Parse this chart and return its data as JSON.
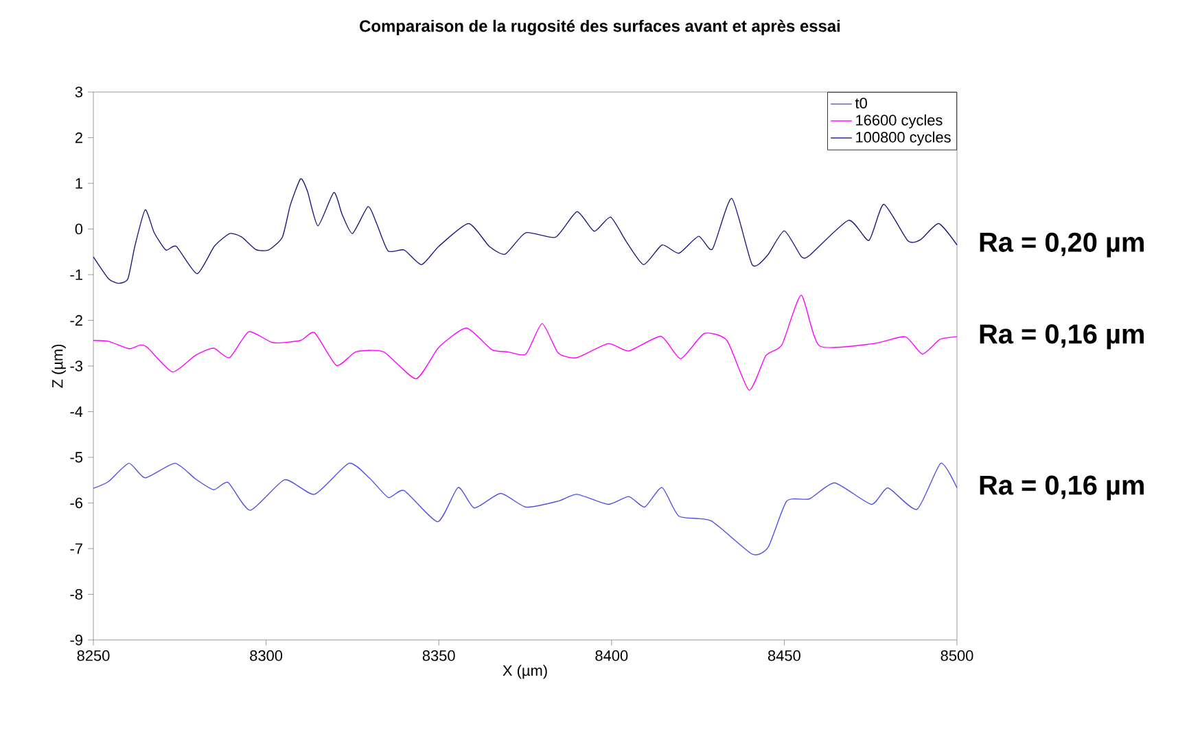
{
  "chart_data": {
    "type": "line",
    "title": "Comparaison de la rugosité des surfaces avant et après essai",
    "xlabel": "X (µm)",
    "ylabel": "Z (µm)",
    "xlim": [
      8250,
      8500
    ],
    "xticks": [
      8250,
      8300,
      8350,
      8400,
      8450,
      8500
    ],
    "ylim": [
      -9,
      3
    ],
    "yticks": [
      -9,
      -8,
      -7,
      -6,
      -5,
      -4,
      -3,
      -2,
      -1,
      0,
      1,
      2,
      3
    ],
    "grid": false,
    "legend": "top right",
    "marker": "none",
    "line_style": "solid",
    "series": [
      {
        "name": "t0",
        "color": "#5050e6",
        "x": [
          8250,
          8254.4,
          8260.3,
          8265,
          8273.6,
          8279.5,
          8284.8,
          8289,
          8295.4,
          8305.4,
          8314,
          8324,
          8330,
          8335.4,
          8340,
          8349.7,
          8355.6,
          8360.3,
          8367.9,
          8375.2,
          8384.5,
          8390,
          8399,
          8405,
          8409.6,
          8414.6,
          8419.5,
          8428.8,
          8440.7,
          8445.4,
          8450.7,
          8457.3,
          8464.6,
          8475.2,
          8480,
          8488.4,
          8495.3,
          8500
        ],
        "values": [
          -5.68,
          -5.53,
          -5.13,
          -5.45,
          -5.13,
          -5.47,
          -5.71,
          -5.55,
          -6.16,
          -5.49,
          -5.81,
          -5.13,
          -5.46,
          -5.88,
          -5.73,
          -6.41,
          -5.66,
          -6.11,
          -5.79,
          -6.09,
          -5.96,
          -5.81,
          -6.03,
          -5.86,
          -6.09,
          -5.66,
          -6.29,
          -6.39,
          -7.12,
          -6.96,
          -5.96,
          -5.91,
          -5.56,
          -6.03,
          -5.67,
          -6.14,
          -5.13,
          -5.67
        ]
      },
      {
        "name": "16600 cycles",
        "color": "#ff00ff",
        "x": [
          8250,
          8254.4,
          8260.3,
          8263.6,
          8265.6,
          8272.9,
          8279.5,
          8284.8,
          8289.4,
          8295,
          8302,
          8310,
          8314,
          8320.4,
          8326,
          8334,
          8343.4,
          8350,
          8358,
          8365.3,
          8370,
          8375.2,
          8379.9,
          8384.5,
          8389.8,
          8399,
          8405,
          8414.3,
          8420,
          8426.8,
          8433.4,
          8439.8,
          8444.7,
          8449.3,
          8454.9,
          8460.2,
          8475.8,
          8485,
          8490,
          8495,
          8500
        ],
        "values": [
          -2.44,
          -2.46,
          -2.62,
          -2.54,
          -2.59,
          -3.13,
          -2.77,
          -2.61,
          -2.82,
          -2.25,
          -2.49,
          -2.44,
          -2.27,
          -2.99,
          -2.69,
          -2.69,
          -3.28,
          -2.59,
          -2.17,
          -2.64,
          -2.69,
          -2.74,
          -2.07,
          -2.71,
          -2.82,
          -2.51,
          -2.67,
          -2.35,
          -2.84,
          -2.29,
          -2.44,
          -3.53,
          -2.77,
          -2.54,
          -1.45,
          -2.56,
          -2.51,
          -2.36,
          -2.74,
          -2.42,
          -2.36
        ]
      },
      {
        "name": "100800 cycles",
        "color": "#1a1a80",
        "x": [
          8250,
          8254.4,
          8257.3,
          8260,
          8262,
          8265,
          8267.6,
          8271,
          8274,
          8280,
          8285,
          8289.5,
          8293,
          8297,
          8300.7,
          8304.7,
          8307,
          8310,
          8312,
          8315,
          8319.6,
          8322,
          8325,
          8329.5,
          8332,
          8335.3,
          8340,
          8345,
          8350,
          8358.6,
          8364.6,
          8369.2,
          8375.2,
          8383.8,
          8390,
          8395,
          8399.7,
          8404.3,
          8409.3,
          8414.6,
          8419.5,
          8425.2,
          8429.2,
          8434.8,
          8440.7,
          8445.1,
          8450,
          8454.9,
          8457.3,
          8468.6,
          8474.5,
          8478.8,
          8485.8,
          8489.5,
          8494.7,
          8500
        ],
        "values": [
          -0.61,
          -1.09,
          -1.19,
          -1.09,
          -0.38,
          0.42,
          -0.08,
          -0.46,
          -0.38,
          -0.98,
          -0.38,
          -0.1,
          -0.18,
          -0.45,
          -0.46,
          -0.18,
          0.52,
          1.1,
          0.82,
          0.07,
          0.8,
          0.32,
          -0.1,
          0.49,
          0.12,
          -0.48,
          -0.46,
          -0.78,
          -0.38,
          0.12,
          -0.38,
          -0.55,
          -0.08,
          -0.18,
          0.38,
          -0.05,
          0.26,
          -0.28,
          -0.78,
          -0.35,
          -0.53,
          -0.16,
          -0.44,
          0.67,
          -0.78,
          -0.58,
          -0.04,
          -0.6,
          -0.58,
          0.19,
          -0.25,
          0.54,
          -0.26,
          -0.23,
          0.12,
          -0.35
        ]
      }
    ],
    "annotations": [
      "Ra = 0,20 µm",
      "Ra = 0,16 µm",
      "Ra = 0,16 µm"
    ]
  }
}
